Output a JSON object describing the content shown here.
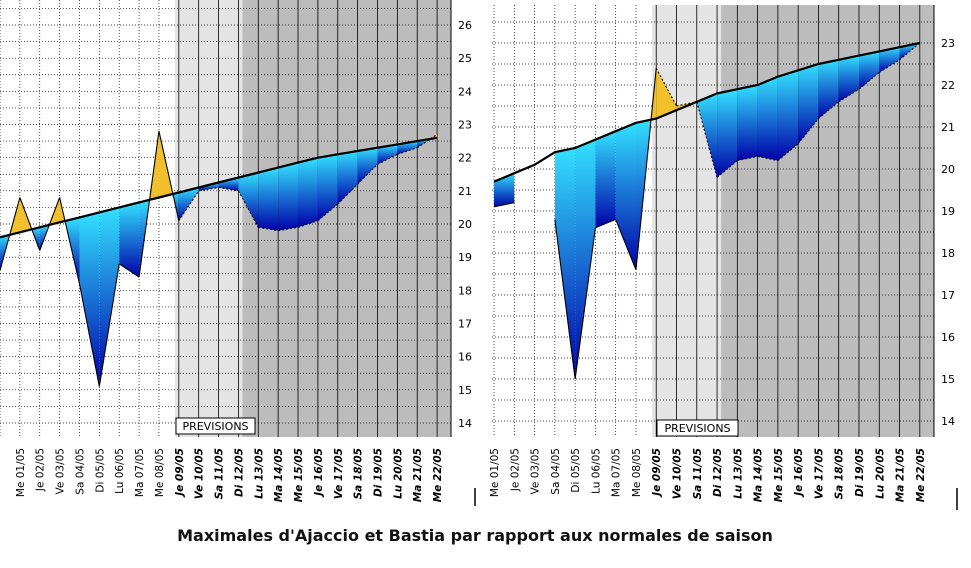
{
  "caption": "Maximales d'Ajaccio et Bastia par rapport aux normales de saison",
  "forecast_label": "PREVISIONS",
  "colors": {
    "past_bg": "#ffffff",
    "forecast_near_bg": "#e4e4e4",
    "forecast_far_bg": "#bcbcbc",
    "grid": "#000000",
    "normal_line": "#000000",
    "warm_fill": "#f2c02a",
    "cold_fill_light": "#33e0ff",
    "cold_fill_dark": "#0000a8"
  },
  "chart_data": [
    {
      "type": "area",
      "title": "",
      "xlabel": "",
      "ylabel": "",
      "ylim": [
        13.6,
        27
      ],
      "y_ticks": [
        "14",
        "15",
        "16",
        "17",
        "18",
        "19",
        "20",
        "21",
        "22",
        "23",
        "24",
        "25",
        "26"
      ],
      "grid": true,
      "forecast_start_label": "Je 09/05",
      "categories": [
        "",
        "Me 01/05",
        "Je 02/05",
        "Ve 03/05",
        "Sa 04/05",
        "Di 05/05",
        "Lu 06/05",
        "Ma 07/05",
        "Me 08/05",
        "Je 09/05",
        "Ve 10/05",
        "Sa 11/05",
        "Di 12/05",
        "Lu 13/05",
        "Ma 14/05",
        "Me 15/05",
        "Je 16/05",
        "Ve 17/05",
        "Sa 18/05",
        "Di 19/05",
        "Lu 20/05",
        "Ma 21/05",
        "Me 22/05"
      ],
      "series": [
        {
          "values": [
            18.6,
            20.8,
            19.2,
            20.8,
            18.2,
            15.1,
            18.8,
            18.4,
            22.8,
            20.1,
            21.0,
            21.1,
            21.0,
            19.9,
            19.8,
            19.9,
            20.1,
            20.6,
            21.2,
            21.8,
            22.1,
            22.3,
            22.7
          ]
        },
        {
          "values": [
            19.6,
            19.75,
            19.9,
            20.05,
            20.2,
            20.35,
            20.5,
            20.65,
            20.8,
            20.95,
            21.1,
            21.25,
            21.4,
            21.55,
            21.7,
            21.85,
            22.0,
            22.1,
            22.2,
            22.3,
            22.4,
            22.5,
            22.6
          ]
        }
      ]
    },
    {
      "type": "area",
      "title": "",
      "xlabel": "",
      "ylabel": "",
      "ylim": [
        13.6,
        24.1
      ],
      "y_ticks": [
        "14",
        "15",
        "16",
        "17",
        "18",
        "19",
        "20",
        "21",
        "22",
        "23"
      ],
      "grid": true,
      "forecast_start_label": "Je 09/05",
      "categories": [
        "Me 01/05",
        "Je 02/05",
        "Ve 03/05",
        "Sa 04/05",
        "Di 05/05",
        "Lu 06/05",
        "Ma 07/05",
        "Me 08/05",
        "Je 09/05",
        "Ve 10/05",
        "Sa 11/05",
        "Di 12/05",
        "Lu 13/05",
        "Ma 14/05",
        "Me 15/05",
        "Je 16/05",
        "Ve 17/05",
        "Sa 18/05",
        "Di 19/05",
        "Lu 20/05",
        "Ma 21/05",
        "Me 22/05"
      ],
      "series": [
        {
          "values": [
            19.1,
            19.2,
            null,
            18.8,
            15.0,
            18.6,
            18.8,
            17.6,
            22.4,
            21.5,
            21.6,
            19.8,
            20.2,
            20.3,
            20.2,
            20.6,
            21.2,
            21.6,
            21.9,
            22.3,
            22.6,
            23.0
          ]
        },
        {
          "values": [
            19.7,
            19.9,
            20.1,
            20.4,
            20.5,
            20.7,
            20.9,
            21.1,
            21.2,
            21.4,
            21.6,
            21.8,
            21.9,
            22.0,
            22.2,
            22.35,
            22.5,
            22.6,
            22.7,
            22.8,
            22.9,
            23.0
          ]
        }
      ]
    }
  ]
}
